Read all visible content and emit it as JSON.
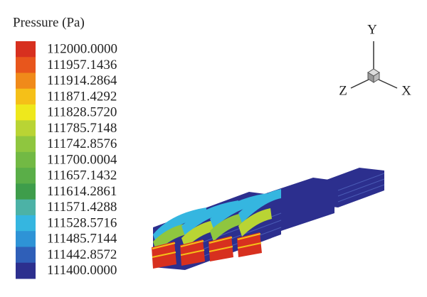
{
  "legend": {
    "title": "Pressure (Pa)",
    "levels": [
      {
        "label": "112000.0000",
        "color": "#d7301f"
      },
      {
        "label": "111957.1436",
        "color": "#e8561c"
      },
      {
        "label": "111914.2864",
        "color": "#f08a1a"
      },
      {
        "label": "111871.4292",
        "color": "#f5c018"
      },
      {
        "label": "111828.5720",
        "color": "#eee81c"
      },
      {
        "label": "111785.7148",
        "color": "#b9d434"
      },
      {
        "label": "111742.8576",
        "color": "#8fc63f"
      },
      {
        "label": "111700.0004",
        "color": "#72b944"
      },
      {
        "label": "111657.1432",
        "color": "#5aae48"
      },
      {
        "label": "111614.2861",
        "color": "#3e9d4b"
      },
      {
        "label": "111571.4288",
        "color": "#4cb2a6"
      },
      {
        "label": "111528.5716",
        "color": "#35b6e0"
      },
      {
        "label": "111485.7144",
        "color": "#2e93d6"
      },
      {
        "label": "111442.8572",
        "color": "#2f5fb8"
      },
      {
        "label": "111400.0000",
        "color": "#2c2f8e"
      }
    ]
  },
  "axes_triad": {
    "y": "Y",
    "z": "Z",
    "x": "X"
  }
}
